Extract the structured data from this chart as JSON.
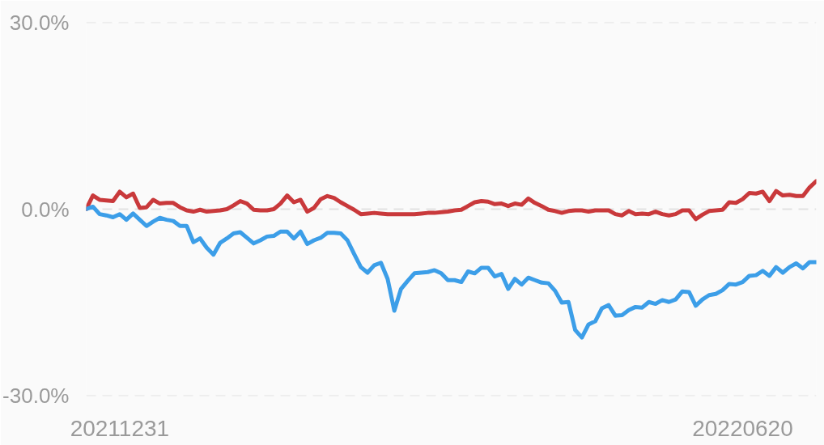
{
  "chart_data": {
    "type": "line",
    "categories": [
      null,
      null,
      null,
      null,
      null,
      "20211231",
      null,
      null,
      null,
      null,
      null,
      null,
      null,
      null,
      null,
      null,
      null,
      null,
      null,
      null,
      null,
      null,
      null,
      null,
      null,
      null,
      null,
      null,
      null,
      null,
      null,
      null,
      null,
      null,
      null,
      null,
      null,
      null,
      null,
      null,
      null,
      null,
      null,
      null,
      null,
      null,
      null,
      null,
      null,
      null,
      null,
      null,
      null,
      null,
      null,
      null,
      null,
      null,
      null,
      null,
      null,
      null,
      null,
      null,
      null,
      null,
      null,
      null,
      null,
      null,
      null,
      null,
      null,
      null,
      null,
      null,
      null,
      null,
      null,
      null,
      null,
      null,
      null,
      null,
      null,
      null,
      null,
      null,
      null,
      null,
      null,
      null,
      null,
      null,
      null,
      null,
      null,
      null,
      "20220620",
      null,
      null,
      null,
      null,
      null,
      null,
      null,
      null,
      null,
      null,
      null
    ],
    "series": [
      {
        "color": "#c9393b",
        "values": [
          0,
          2.2,
          1.5,
          1.4,
          1.3,
          2.8,
          1.9,
          2.5,
          0.2,
          0.3,
          1.5,
          0.9,
          1.0,
          1.0,
          0.3,
          -0.2,
          -0.4,
          -0.1,
          -0.4,
          -0.3,
          -0.2,
          0,
          0.6,
          1.3,
          0.9,
          -0.1,
          -0.2,
          -0.2,
          0,
          0.9,
          2.2,
          1.1,
          1.5,
          -0.4,
          0.2,
          1.6,
          2.1,
          1.8,
          1.1,
          0.5,
          -0.1,
          -0.8,
          -0.7,
          -0.6,
          -0.7,
          -0.8,
          -0.8,
          -0.8,
          -0.8,
          -0.8,
          -0.7,
          -0.6,
          -0.6,
          -0.5,
          -0.4,
          -0.2,
          -0.1,
          0.5,
          1.1,
          1.3,
          1.2,
          0.8,
          0.9,
          0.5,
          0.9,
          0.7,
          1.7,
          1.0,
          0.5,
          -0.1,
          -0.3,
          -0.6,
          -0.3,
          -0.2,
          -0.2,
          -0.4,
          -0.2,
          -0.2,
          -0.2,
          -0.8,
          -1.0,
          -0.3,
          -0.8,
          -0.7,
          -0.8,
          -0.4,
          -0.8,
          -1.0,
          -0.8,
          -0.2,
          -0.2,
          -1.6,
          -0.9,
          -0.3,
          -0.2,
          -0.1,
          1.1,
          1.0,
          1.6,
          2.6,
          2.5,
          2.8,
          1.3,
          2.9,
          2.2,
          2.3,
          2.1,
          2.1,
          3.5,
          4.5
        ]
      },
      {
        "color": "#3c9ee8",
        "values": [
          0,
          0.4,
          -0.8,
          -1.0,
          -1.3,
          -0.8,
          -1.7,
          -0.7,
          -1.7,
          -2.7,
          -2.0,
          -1.4,
          -1.7,
          -1.9,
          -2.7,
          -2.7,
          -5.3,
          -4.7,
          -6.2,
          -7.3,
          -5.4,
          -4.7,
          -3.9,
          -3.7,
          -4.6,
          -5.5,
          -5.0,
          -4.4,
          -4.3,
          -3.6,
          -3.6,
          -4.7,
          -3.6,
          -5.6,
          -5.0,
          -4.6,
          -3.8,
          -3.8,
          -3.9,
          -5.0,
          -7.2,
          -9.3,
          -10.2,
          -9.0,
          -8.6,
          -11.2,
          -16.3,
          -12.8,
          -11.5,
          -10.3,
          -10.2,
          -10.1,
          -9.8,
          -10.3,
          -11.4,
          -11.4,
          -11.7,
          -10.0,
          -10.3,
          -9.4,
          -9.4,
          -10.8,
          -10.4,
          -12.8,
          -11.2,
          -12.1,
          -11.0,
          -11.4,
          -11.8,
          -11.9,
          -13.1,
          -15.0,
          -14.9,
          -19.4,
          -20.6,
          -18.5,
          -18.0,
          -15.9,
          -15.4,
          -17.1,
          -17.0,
          -16.2,
          -15.7,
          -15.8,
          -14.9,
          -15.2,
          -14.6,
          -14.9,
          -14.5,
          -13.2,
          -13.3,
          -15.5,
          -14.5,
          -13.8,
          -13.6,
          -13.0,
          -12.0,
          -12.1,
          -11.7,
          -10.7,
          -10.6,
          -9.9,
          -10.7,
          -9.3,
          -10.2,
          -9.3,
          -8.7,
          -9.5,
          -8.5,
          -8.5
        ]
      }
    ],
    "ylim": [
      -30,
      30
    ],
    "yticks": [
      {
        "value": 30,
        "label": "30.0%"
      },
      {
        "value": 0,
        "label": "0.0%"
      },
      {
        "value": -30,
        "label": "-30.0%"
      }
    ],
    "grid": "y"
  }
}
